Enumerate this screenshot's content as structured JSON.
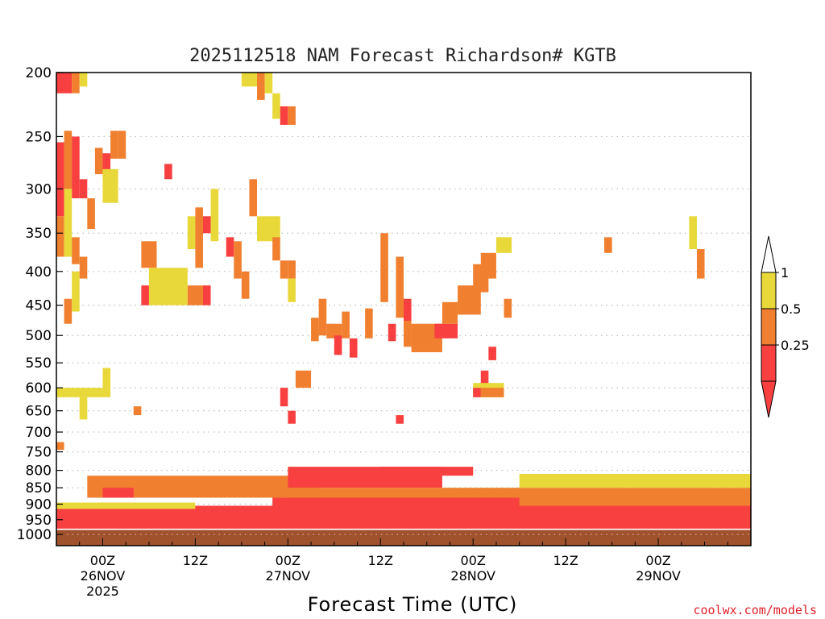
{
  "chart_data": {
    "type": "heatmap",
    "title": "2025112518 NAM Forecast Richardson# KGTB",
    "xlabel": "Forecast Time (UTC)",
    "ylabel": "",
    "credit": "coolwx.com/models",
    "y_scale": "log-pressure",
    "ylim": [
      1040,
      200
    ],
    "y_ticks": [
      200,
      250,
      300,
      350,
      400,
      450,
      500,
      550,
      600,
      650,
      700,
      750,
      800,
      850,
      900,
      950,
      1000
    ],
    "x_start": "2025-11-25 18Z",
    "x_end": "2025-11-29 12Z",
    "x_ticks": [
      {
        "at": "2025-11-26 00Z",
        "hour": "00Z",
        "date": "26NOV",
        "year": "2025"
      },
      {
        "at": "2025-11-26 12Z",
        "hour": "12Z",
        "date": "",
        "year": ""
      },
      {
        "at": "2025-11-27 00Z",
        "hour": "00Z",
        "date": "27NOV",
        "year": ""
      },
      {
        "at": "2025-11-27 12Z",
        "hour": "12Z",
        "date": "",
        "year": ""
      },
      {
        "at": "2025-11-28 00Z",
        "hour": "00Z",
        "date": "28NOV",
        "year": ""
      },
      {
        "at": "2025-11-28 12Z",
        "hour": "12Z",
        "date": "",
        "year": ""
      },
      {
        "at": "2025-11-29 00Z",
        "hour": "00Z",
        "date": "29NOV",
        "year": ""
      }
    ],
    "grid": {
      "horizontal": "dotted",
      "vertical": "none"
    },
    "legend": {
      "placement": "right",
      "bins": [
        {
          "label": "1",
          "from": 0.5,
          "to": 1,
          "color": "#e8d83a"
        },
        {
          "label": "0.5",
          "from": 0.25,
          "to": 0.5,
          "color": "#f08030"
        },
        {
          "label": "0.25",
          "from": 0,
          "to": 0.25,
          "color": "#f84040"
        }
      ]
    },
    "colors": {
      "low": "#f84040",
      "mid": "#f08030",
      "high": "#e8d83a",
      "ground": "#a0522d",
      "background": "#ffffff"
    },
    "surface_pressure_hpa": 985,
    "cells": [
      {
        "x0": "2025-11-25 18Z",
        "x1": "2025-11-25 20Z",
        "p0": 200,
        "p1": 215,
        "v": "low"
      },
      {
        "x0": "2025-11-25 20Z",
        "x1": "2025-11-25 21Z",
        "p0": 200,
        "p1": 215,
        "v": "mid"
      },
      {
        "x0": "2025-11-25 21Z",
        "x1": "2025-11-25 22Z",
        "p0": 200,
        "p1": 210,
        "v": "high"
      },
      {
        "x0": "2025-11-25 18Z",
        "x1": "2025-11-25 19Z",
        "p0": 255,
        "p1": 330,
        "v": "low"
      },
      {
        "x0": "2025-11-25 19Z",
        "x1": "2025-11-25 20Z",
        "p0": 245,
        "p1": 300,
        "v": "mid"
      },
      {
        "x0": "2025-11-25 20Z",
        "x1": "2025-11-25 21Z",
        "p0": 250,
        "p1": 310,
        "v": "low"
      },
      {
        "x0": "2025-11-25 21Z",
        "x1": "2025-11-25 22Z",
        "p0": 290,
        "p1": 310,
        "v": "low"
      },
      {
        "x0": "2025-11-25 18Z",
        "x1": "2025-11-25 19Z",
        "p0": 330,
        "p1": 380,
        "v": "mid"
      },
      {
        "x0": "2025-11-25 19Z",
        "x1": "2025-11-25 20Z",
        "p0": 300,
        "p1": 380,
        "v": "high"
      },
      {
        "x0": "2025-11-25 20Z",
        "x1": "2025-11-25 21Z",
        "p0": 355,
        "p1": 390,
        "v": "mid"
      },
      {
        "x0": "2025-11-25 20Z",
        "x1": "2025-11-25 21Z",
        "p0": 400,
        "p1": 460,
        "v": "high"
      },
      {
        "x0": "2025-11-25 19Z",
        "x1": "2025-11-25 20Z",
        "p0": 440,
        "p1": 480,
        "v": "mid"
      },
      {
        "x0": "2025-11-25 21Z",
        "x1": "2025-11-25 22Z",
        "p0": 380,
        "p1": 410,
        "v": "mid"
      },
      {
        "x0": "2025-11-25 22Z",
        "x1": "2025-11-25 23Z",
        "p0": 310,
        "p1": 345,
        "v": "mid"
      },
      {
        "x0": "2025-11-25 23Z",
        "x1": "2025-11-26 00Z",
        "p0": 260,
        "p1": 285,
        "v": "mid"
      },
      {
        "x0": "2025-11-26 00Z",
        "x1": "2025-11-26 01Z",
        "p0": 265,
        "p1": 290,
        "v": "low"
      },
      {
        "x0": "2025-11-26 01Z",
        "x1": "2025-11-26 02Z",
        "p0": 245,
        "p1": 270,
        "v": "mid"
      },
      {
        "x0": "2025-11-26 02Z",
        "x1": "2025-11-26 03Z",
        "p0": 245,
        "p1": 270,
        "v": "mid"
      },
      {
        "x0": "2025-11-26 00Z",
        "x1": "2025-11-26 02Z",
        "p0": 280,
        "p1": 315,
        "v": "high"
      },
      {
        "x0": "2025-11-26 08Z",
        "x1": "2025-11-26 09Z",
        "p0": 275,
        "p1": 290,
        "v": "low"
      },
      {
        "x0": "2025-11-26 11Z",
        "x1": "2025-11-26 12Z",
        "p0": 330,
        "p1": 370,
        "v": "high"
      },
      {
        "x0": "2025-11-26 12Z",
        "x1": "2025-11-26 13Z",
        "p0": 320,
        "p1": 395,
        "v": "mid"
      },
      {
        "x0": "2025-11-26 13Z",
        "x1": "2025-11-26 14Z",
        "p0": 330,
        "p1": 350,
        "v": "low"
      },
      {
        "x0": "2025-11-26 14Z",
        "x1": "2025-11-26 15Z",
        "p0": 300,
        "p1": 360,
        "v": "high"
      },
      {
        "x0": "2025-11-26 16Z",
        "x1": "2025-11-26 17Z",
        "p0": 355,
        "p1": 380,
        "v": "low"
      },
      {
        "x0": "2025-11-26 17Z",
        "x1": "2025-11-26 18Z",
        "p0": 360,
        "p1": 410,
        "v": "mid"
      },
      {
        "x0": "2025-11-26 05Z",
        "x1": "2025-11-26 07Z",
        "p0": 360,
        "p1": 395,
        "v": "mid"
      },
      {
        "x0": "2025-11-26 06Z",
        "x1": "2025-11-26 11Z",
        "p0": 395,
        "p1": 450,
        "v": "high"
      },
      {
        "x0": "2025-11-26 11Z",
        "x1": "2025-11-26 13Z",
        "p0": 420,
        "p1": 450,
        "v": "mid"
      },
      {
        "x0": "2025-11-26 05Z",
        "x1": "2025-11-26 06Z",
        "p0": 420,
        "p1": 450,
        "v": "low"
      },
      {
        "x0": "2025-11-26 13Z",
        "x1": "2025-11-26 14Z",
        "p0": 420,
        "p1": 450,
        "v": "low"
      },
      {
        "x0": "2025-11-26 18Z",
        "x1": "2025-11-26 19Z",
        "p0": 400,
        "p1": 440,
        "v": "mid"
      },
      {
        "x0": "2025-11-26 19Z",
        "x1": "2025-11-26 20Z",
        "p0": 290,
        "p1": 330,
        "v": "mid"
      },
      {
        "x0": "2025-11-26 20Z",
        "x1": "2025-11-26 23Z",
        "p0": 330,
        "p1": 360,
        "v": "high"
      },
      {
        "x0": "2025-11-26 18Z",
        "x1": "2025-11-26 20Z",
        "p0": 200,
        "p1": 210,
        "v": "high"
      },
      {
        "x0": "2025-11-26 20Z",
        "x1": "2025-11-26 21Z",
        "p0": 200,
        "p1": 220,
        "v": "mid"
      },
      {
        "x0": "2025-11-26 21Z",
        "x1": "2025-11-26 22Z",
        "p0": 200,
        "p1": 215,
        "v": "high"
      },
      {
        "x0": "2025-11-26 22Z",
        "x1": "2025-11-26 23Z",
        "p0": 215,
        "p1": 235,
        "v": "high"
      },
      {
        "x0": "2025-11-26 23Z",
        "x1": "2025-11-27 00Z",
        "p0": 225,
        "p1": 240,
        "v": "low"
      },
      {
        "x0": "2025-11-27 00Z",
        "x1": "2025-11-27 01Z",
        "p0": 225,
        "p1": 240,
        "v": "mid"
      },
      {
        "x0": "2025-11-26 22Z",
        "x1": "2025-11-26 23Z",
        "p0": 355,
        "p1": 385,
        "v": "mid"
      },
      {
        "x0": "2025-11-27 00Z",
        "x1": "2025-11-27 01Z",
        "p0": 385,
        "p1": 410,
        "v": "mid"
      },
      {
        "x0": "2025-11-26 23Z",
        "x1": "2025-11-27 00Z",
        "p0": 385,
        "p1": 410,
        "v": "mid"
      },
      {
        "x0": "2025-11-27 00Z",
        "x1": "2025-11-27 01Z",
        "p0": 410,
        "p1": 445,
        "v": "high"
      },
      {
        "x0": "2025-11-27 03Z",
        "x1": "2025-11-27 04Z",
        "p0": 470,
        "p1": 510,
        "v": "mid"
      },
      {
        "x0": "2025-11-27 04Z",
        "x1": "2025-11-27 05Z",
        "p0": 440,
        "p1": 500,
        "v": "mid"
      },
      {
        "x0": "2025-11-27 05Z",
        "x1": "2025-11-27 07Z",
        "p0": 480,
        "p1": 505,
        "v": "mid"
      },
      {
        "x0": "2025-11-27 06Z",
        "x1": "2025-11-27 07Z",
        "p0": 500,
        "p1": 535,
        "v": "low"
      },
      {
        "x0": "2025-11-27 07Z",
        "x1": "2025-11-27 08Z",
        "p0": 460,
        "p1": 505,
        "v": "mid"
      },
      {
        "x0": "2025-11-27 08Z",
        "x1": "2025-11-27 09Z",
        "p0": 505,
        "p1": 540,
        "v": "low"
      },
      {
        "x0": "2025-11-27 10Z",
        "x1": "2025-11-27 11Z",
        "p0": 455,
        "p1": 505,
        "v": "mid"
      },
      {
        "x0": "2025-11-27 12Z",
        "x1": "2025-11-27 13Z",
        "p0": 350,
        "p1": 445,
        "v": "mid"
      },
      {
        "x0": "2025-11-27 13Z",
        "x1": "2025-11-27 14Z",
        "p0": 480,
        "p1": 510,
        "v": "low"
      },
      {
        "x0": "2025-11-27 14Z",
        "x1": "2025-11-27 15Z",
        "p0": 380,
        "p1": 470,
        "v": "mid"
      },
      {
        "x0": "2025-11-27 15Z",
        "x1": "2025-11-27 16Z",
        "p0": 440,
        "p1": 475,
        "v": "low"
      },
      {
        "x0": "2025-11-27 15Z",
        "x1": "2025-11-27 16Z",
        "p0": 475,
        "p1": 520,
        "v": "mid"
      },
      {
        "x0": "2025-11-27 16Z",
        "x1": "2025-11-27 20Z",
        "p0": 480,
        "p1": 530,
        "v": "mid"
      },
      {
        "x0": "2025-11-27 19Z",
        "x1": "2025-11-27 22Z",
        "p0": 480,
        "p1": 505,
        "v": "low"
      },
      {
        "x0": "2025-11-27 20Z",
        "x1": "2025-11-27 22Z",
        "p0": 445,
        "p1": 480,
        "v": "mid"
      },
      {
        "x0": "2025-11-27 22Z",
        "x1": "2025-11-28 01Z",
        "p0": 420,
        "p1": 465,
        "v": "mid"
      },
      {
        "x0": "2025-11-28 00Z",
        "x1": "2025-11-28 02Z",
        "p0": 390,
        "p1": 430,
        "v": "mid"
      },
      {
        "x0": "2025-11-28 01Z",
        "x1": "2025-11-28 03Z",
        "p0": 375,
        "p1": 410,
        "v": "mid"
      },
      {
        "x0": "2025-11-28 03Z",
        "x1": "2025-11-28 05Z",
        "p0": 355,
        "p1": 375,
        "v": "high"
      },
      {
        "x0": "2025-11-28 01Z",
        "x1": "2025-11-28 02Z",
        "p0": 565,
        "p1": 600,
        "v": "low"
      },
      {
        "x0": "2025-11-28 00Z",
        "x1": "2025-11-28 04Z",
        "p0": 590,
        "p1": 620,
        "v": "high"
      },
      {
        "x0": "2025-11-28 00Z",
        "x1": "2025-11-28 01Z",
        "p0": 600,
        "p1": 620,
        "v": "low"
      },
      {
        "x0": "2025-11-28 01Z",
        "x1": "2025-11-28 04Z",
        "p0": 600,
        "p1": 620,
        "v": "mid"
      },
      {
        "x0": "2025-11-28 02Z",
        "x1": "2025-11-28 03Z",
        "p0": 520,
        "p1": 545,
        "v": "low"
      },
      {
        "x0": "2025-11-28 04Z",
        "x1": "2025-11-28 05Z",
        "p0": 440,
        "p1": 470,
        "v": "mid"
      },
      {
        "x0": "2025-11-28 17Z",
        "x1": "2025-11-28 18Z",
        "p0": 355,
        "p1": 375,
        "v": "mid"
      },
      {
        "x0": "2025-11-29 04Z",
        "x1": "2025-11-29 05Z",
        "p0": 330,
        "p1": 370,
        "v": "high"
      },
      {
        "x0": "2025-11-29 05Z",
        "x1": "2025-11-29 06Z",
        "p0": 370,
        "p1": 410,
        "v": "mid"
      },
      {
        "x0": "2025-11-26 00Z",
        "x1": "2025-11-26 01Z",
        "p0": 560,
        "p1": 600,
        "v": "high"
      },
      {
        "x0": "2025-11-25 18Z",
        "x1": "2025-11-26 01Z",
        "p0": 600,
        "p1": 620,
        "v": "high"
      },
      {
        "x0": "2025-11-25 21Z",
        "x1": "2025-11-25 22Z",
        "p0": 620,
        "p1": 670,
        "v": "high"
      },
      {
        "x0": "2025-11-26 04Z",
        "x1": "2025-11-26 05Z",
        "p0": 640,
        "p1": 660,
        "v": "mid"
      },
      {
        "x0": "2025-11-26 23Z",
        "x1": "2025-11-27 00Z",
        "p0": 600,
        "p1": 640,
        "v": "low"
      },
      {
        "x0": "2025-11-27 01Z",
        "x1": "2025-11-27 03Z",
        "p0": 565,
        "p1": 600,
        "v": "mid"
      },
      {
        "x0": "2025-11-27 00Z",
        "x1": "2025-11-27 01Z",
        "p0": 650,
        "p1": 680,
        "v": "low"
      },
      {
        "x0": "2025-11-27 14Z",
        "x1": "2025-11-27 15Z",
        "p0": 660,
        "p1": 680,
        "v": "low"
      },
      {
        "x0": "2025-11-25 18Z",
        "x1": "2025-11-25 19Z",
        "p0": 725,
        "p1": 745,
        "v": "mid"
      },
      {
        "x0": "2025-11-25 22Z",
        "x1": "2025-11-27 04Z",
        "p0": 815,
        "p1": 880,
        "v": "mid"
      },
      {
        "x0": "2025-11-26 00Z",
        "x1": "2025-11-26 04Z",
        "p0": 850,
        "p1": 880,
        "v": "low"
      },
      {
        "x0": "2025-11-27 00Z",
        "x1": "2025-11-27 20Z",
        "p0": 790,
        "p1": 850,
        "v": "low"
      },
      {
        "x0": "2025-11-27 12Z",
        "x1": "2025-11-28 00Z",
        "p0": 790,
        "p1": 815,
        "v": "low"
      },
      {
        "x0": "2025-11-27 00Z",
        "x1": "2025-11-29 12Z",
        "p0": 850,
        "p1": 905,
        "v": "mid"
      },
      {
        "x0": "2025-11-25 18Z",
        "x1": "2025-11-29 12Z",
        "p0": 905,
        "p1": 985,
        "v": "low"
      },
      {
        "x0": "2025-11-26 22Z",
        "x1": "2025-11-28 06Z",
        "p0": 880,
        "p1": 960,
        "v": "low"
      },
      {
        "x0": "2025-11-25 18Z",
        "x1": "2025-11-26 12Z",
        "p0": 895,
        "p1": 915,
        "v": "high"
      },
      {
        "x0": "2025-11-28 06Z",
        "x1": "2025-11-29 12Z",
        "p0": 810,
        "p1": 850,
        "v": "high"
      }
    ]
  }
}
